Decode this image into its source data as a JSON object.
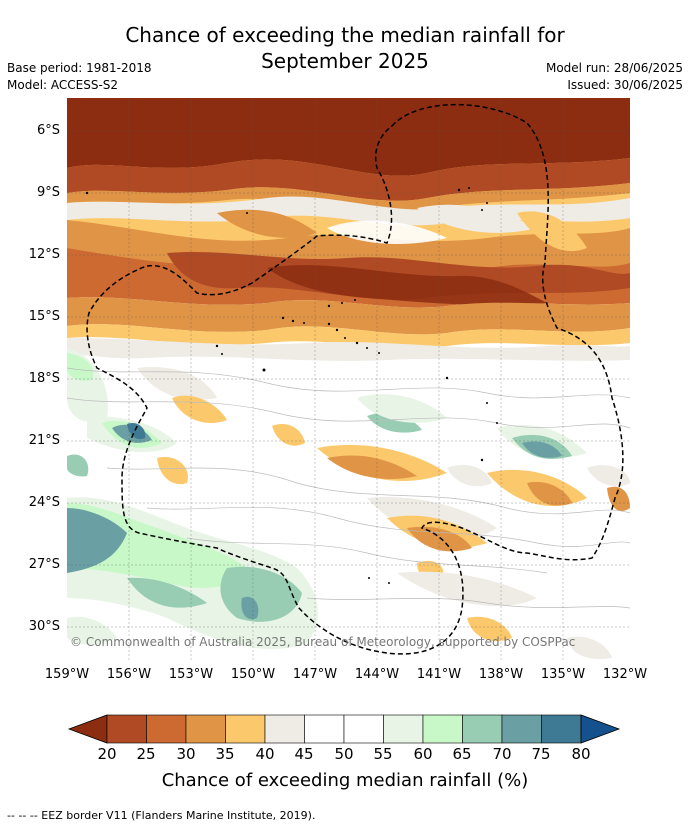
{
  "title_line1": "Chance of exceeding the median rainfall for",
  "title_line2": "September 2025",
  "meta": {
    "base_period": "Base period: 1981-2018",
    "model": "Model: ACCESS-S2",
    "model_run": "Model run: 28/06/2025",
    "issued": "Issued: 30/06/2025"
  },
  "map": {
    "lat_labels": [
      "6°S",
      "9°S",
      "12°S",
      "15°S",
      "18°S",
      "21°S",
      "24°S",
      "27°S",
      "30°S"
    ],
    "lon_labels": [
      "159°W",
      "156°W",
      "153°W",
      "150°W",
      "147°W",
      "144°W",
      "141°W",
      "138°W",
      "135°W",
      "132°W"
    ],
    "copyright": "© Commonwealth of Australia 2025, Bureau of Meteorology, supported by COSPPac"
  },
  "colorbar": {
    "ticks": [
      "20",
      "25",
      "30",
      "35",
      "40",
      "45",
      "50",
      "55",
      "60",
      "65",
      "70",
      "75",
      "80"
    ],
    "colors": {
      "below_20": "#8c2d12",
      "20-25": "#b04a24",
      "25-30": "#cd6a32",
      "30-35": "#e09446",
      "35-40": "#fcc86c",
      "40-45": "#efebe5",
      "45-50": "#ffffff",
      "50-55": "#ffffff",
      "55-60": "#e8f5e6",
      "60-65": "#c8f8c8",
      "65-70": "#98cdb4",
      "70-75": "#6aa0a4",
      "75-80": "#3f7a94",
      "above_80": "#15518c"
    },
    "title": "Chance of exceeding median rainfall (%)"
  },
  "footnote": "--  --  -- EEZ border V11 (Flanders Marine Institute, 2019)."
}
